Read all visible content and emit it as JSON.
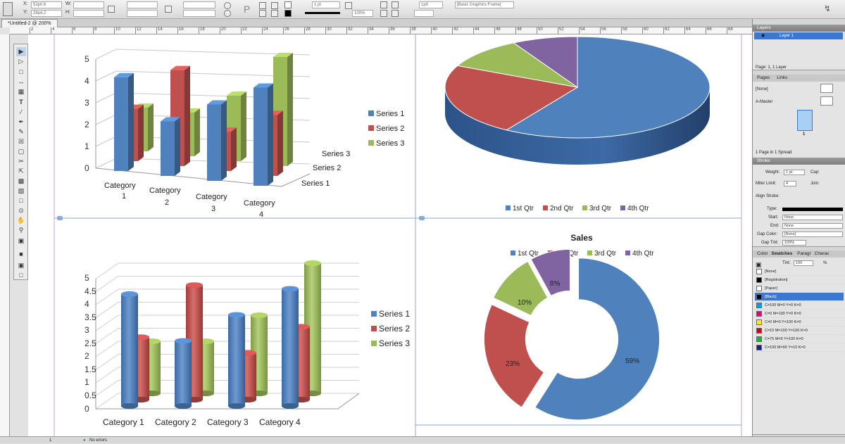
{
  "control_panel": {
    "x_label": "X:",
    "y_label": "Y:",
    "w_label": "W:",
    "h_label": "H:",
    "x_value": "52p0.6",
    "y_value": "28p4.2",
    "stroke_weight": "1 pt",
    "zoom": "100%",
    "spacing": "1p0",
    "object_style": "[Basic Graphics Frame]"
  },
  "document_tab": {
    "title": "*Untitled-2 @ 200%"
  },
  "ruler_marks": [
    "2",
    "4",
    "6",
    "8",
    "10",
    "12",
    "14",
    "16",
    "18",
    "20",
    "22",
    "24",
    "26",
    "28",
    "30",
    "32",
    "34",
    "36",
    "38",
    "40",
    "42",
    "44",
    "46",
    "48",
    "50",
    "52",
    "54",
    "56",
    "58",
    "60",
    "62",
    "64",
    "66",
    "68"
  ],
  "charts": {
    "chart1": {
      "y_ticks": [
        "5",
        "4",
        "3",
        "2",
        "1",
        "0"
      ],
      "categories": [
        [
          "Category",
          "1"
        ],
        [
          "Category",
          "2"
        ],
        [
          "Category",
          "3"
        ],
        [
          "Category",
          "4"
        ]
      ],
      "series_axis": [
        "Series 3",
        "Series 2",
        "Series 1"
      ],
      "legend": [
        "Series 1",
        "Series 2",
        "Series 3"
      ]
    },
    "chart2": {
      "legend": [
        "1st Qtr",
        "2nd Qtr",
        "3rd Qtr",
        "4th Qtr"
      ]
    },
    "chart3": {
      "y_ticks": [
        "5",
        "4.5",
        "4",
        "3.5",
        "3",
        "2.5",
        "2",
        "1.5",
        "1",
        "0.5",
        "0"
      ],
      "categories": [
        "Category 1",
        "Category 2",
        "Category 3",
        "Category 4"
      ],
      "legend": [
        "Series 1",
        "Series 2",
        "Series 3"
      ]
    },
    "chart4": {
      "title": "Sales",
      "legend": [
        "1st Qtr",
        "2nd Qtr",
        "3rd Qtr",
        "4th Qtr"
      ],
      "labels": [
        "59%",
        "23%",
        "10%",
        "8%"
      ]
    }
  },
  "chart_data": [
    {
      "type": "bar",
      "categories": [
        "Category 1",
        "Category 2",
        "Category 3",
        "Category 4"
      ],
      "series": [
        {
          "name": "Series 1",
          "values": [
            4.3,
            2.5,
            3.5,
            4.5
          ]
        },
        {
          "name": "Series 2",
          "values": [
            2.4,
            4.4,
            1.8,
            2.8
          ]
        },
        {
          "name": "Series 3",
          "values": [
            2,
            2,
            3,
            5
          ]
        }
      ],
      "ylim": [
        0,
        5
      ],
      "legend_position": "right"
    },
    {
      "type": "pie",
      "categories": [
        "1st Qtr",
        "2nd Qtr",
        "3rd Qtr",
        "4th Qtr"
      ],
      "values": [
        59,
        23,
        10,
        8
      ],
      "legend_position": "bottom"
    },
    {
      "type": "bar",
      "categories": [
        "Category 1",
        "Category 2",
        "Category 3",
        "Category 4"
      ],
      "series": [
        {
          "name": "Series 1",
          "values": [
            4.3,
            2.5,
            3.5,
            4.5
          ]
        },
        {
          "name": "Series 2",
          "values": [
            2.4,
            4.4,
            1.8,
            2.8
          ]
        },
        {
          "name": "Series 3",
          "values": [
            2,
            2,
            3,
            5
          ]
        }
      ],
      "ylim": [
        0,
        5
      ],
      "legend_position": "right"
    },
    {
      "type": "pie",
      "title": "Sales",
      "categories": [
        "1st Qtr",
        "2nd Qtr",
        "3rd Qtr",
        "4th Qtr"
      ],
      "values": [
        59,
        23,
        10,
        8
      ],
      "data_labels": [
        "59%",
        "23%",
        "10%",
        "8%"
      ],
      "legend_position": "top"
    }
  ],
  "colors": {
    "blue": "#4f81bd",
    "red": "#c0504d",
    "green": "#9bbb59",
    "purple": "#8064a2"
  },
  "layers_panel": {
    "title": "Layers",
    "layer_name": "Layer 1",
    "footer": "Page: 1, 1 Layer"
  },
  "pages_panel": {
    "tabs": [
      "Pages",
      "Links"
    ],
    "none_label": "[None]",
    "master_label": "A-Master",
    "page_number": "1",
    "footer": "1 Page in 1 Spread"
  },
  "stroke_panel": {
    "title": "Stroke",
    "weight_label": "Weight:",
    "weight_value": "1 pt",
    "cap_label": "Cap:",
    "miter_label": "Miter Limit:",
    "miter_value": "4",
    "join_label": "Join:",
    "align_label": "Align Stroke:",
    "type_label": "Type:",
    "start_label": "Start:",
    "start_value": "None",
    "end_label": "End:",
    "end_value": "None",
    "gap_color_label": "Gap Color:",
    "gap_color_value": "[None]",
    "gap_tint_label": "Gap Tint:",
    "gap_tint_value": "100%"
  },
  "swatches_panel": {
    "tabs": [
      "Color",
      "Swatches",
      "Paragr",
      "Charac"
    ],
    "tint_label": "Tint:",
    "tint_value": "100",
    "tint_unit": "%",
    "swatches": [
      {
        "name": "[None]",
        "color": "#ffffff"
      },
      {
        "name": "[Registration]",
        "color": "#000000"
      },
      {
        "name": "[Paper]",
        "color": "#ffffff"
      },
      {
        "name": "[Black]",
        "color": "#000000"
      },
      {
        "name": "C=100 M=0 Y=0 K=0",
        "color": "#00a0e9"
      },
      {
        "name": "C=0 M=100 Y=0 K=0",
        "color": "#e4007f"
      },
      {
        "name": "C=0 M=0 Y=100 K=0",
        "color": "#fff100"
      },
      {
        "name": "C=15 M=100 Y=100 K=0",
        "color": "#d7000f"
      },
      {
        "name": "C=75 M=5 Y=100 K=0",
        "color": "#22ac38"
      },
      {
        "name": "C=100 M=90 Y=10 K=0",
        "color": "#1d2088"
      }
    ]
  },
  "status_bar": {
    "page": "1",
    "errors": "No errors"
  }
}
